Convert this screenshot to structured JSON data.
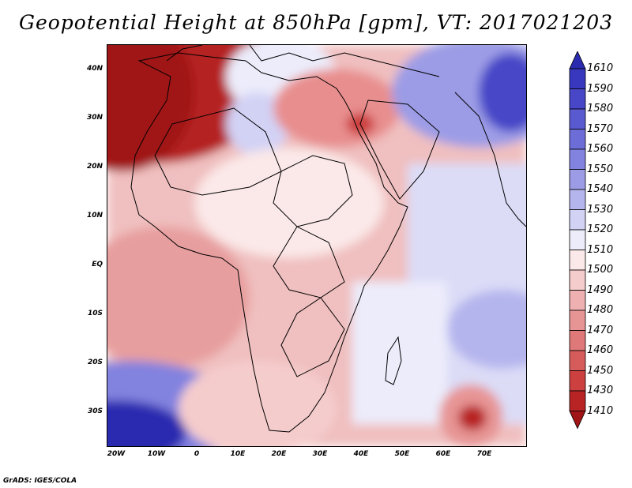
{
  "title": "Geopotential Height at 850hPa [gpm], VT: 2017021203",
  "credit": "GrADS: IGES/COLA",
  "lat_labels": [
    "40N",
    "30N",
    "20N",
    "10N",
    "EQ",
    "10S",
    "20S",
    "30S"
  ],
  "lon_labels": [
    "20W",
    "10W",
    "0",
    "10E",
    "20E",
    "30E",
    "40E",
    "50E",
    "60E",
    "70E"
  ],
  "colorbar": {
    "labels": [
      "1610",
      "1590",
      "1580",
      "1570",
      "1560",
      "1550",
      "1540",
      "1530",
      "1520",
      "1510",
      "1500",
      "1490",
      "1480",
      "1470",
      "1460",
      "1450",
      "1430",
      "1410"
    ],
    "colors": [
      "#2b2bb0",
      "#3838bf",
      "#4747c8",
      "#5a5ad0",
      "#6d6dd8",
      "#8282df",
      "#9c9ce6",
      "#b5b5ee",
      "#d2d2f5",
      "#ececfb",
      "#fbe8e8",
      "#f5cccc",
      "#eeb0b0",
      "#e79494",
      "#df7878",
      "#d65c5c",
      "#cc4040",
      "#b82424",
      "#a01515"
    ]
  }
}
